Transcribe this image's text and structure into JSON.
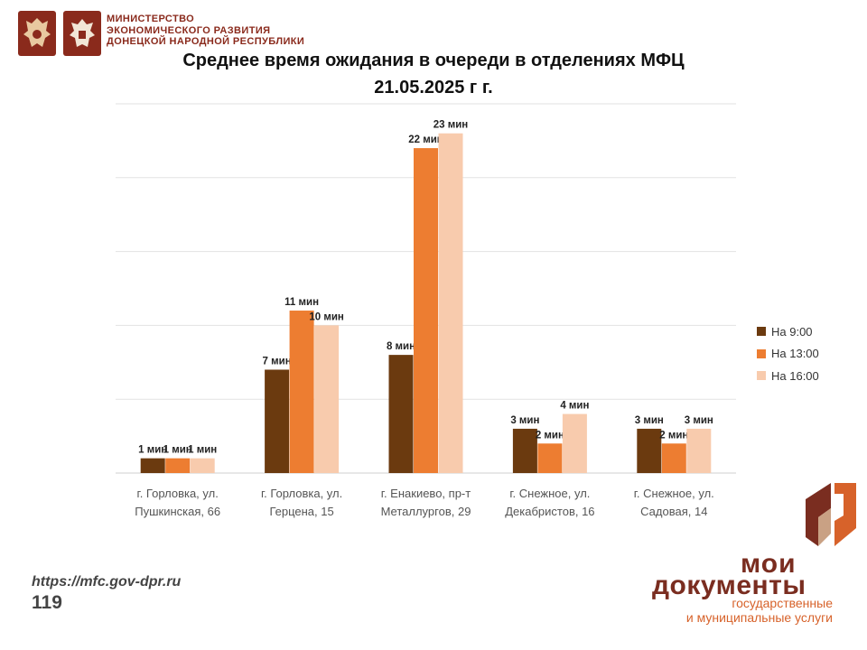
{
  "header": {
    "ministry_lines": [
      "МИНИСТЕРСТВО",
      "ЭКОНОМИЧЕСКОГО РАЗВИТИЯ",
      "ДОНЕЦКОЙ НАРОДНОЙ РЕСПУБЛИКИ"
    ]
  },
  "colors": {
    "series": [
      "#6b3a0f",
      "#ed7d31",
      "#f8cbad"
    ],
    "brand": "#7a2d20",
    "accent": "#d7622a"
  },
  "chart_data": {
    "type": "bar",
    "title_line_1": "Среднее время ожидания в очереди в отделениях МФЦ",
    "title_line_2": "21.05.2025 г г.",
    "categories": [
      [
        "г. Горловка, ул.",
        "Пушкинская, 66"
      ],
      [
        "г. Горловка, ул.",
        "Герцена, 15"
      ],
      [
        "г. Енакиево, пр-т",
        "Металлургов, 29"
      ],
      [
        "г. Снежное, ул.",
        "Декабристов, 16"
      ],
      [
        "г. Снежное, ул.",
        "Садовая, 14"
      ]
    ],
    "series": [
      {
        "name": "На 9:00",
        "values": [
          1,
          7,
          8,
          3,
          3
        ],
        "labels": [
          "1 мин",
          "7 мин",
          "8 мин",
          "3 мин",
          "3 мин"
        ]
      },
      {
        "name": "На 13:00",
        "values": [
          1,
          11,
          22,
          2,
          2
        ],
        "labels": [
          "1 мин",
          "11 мин",
          "22 мин",
          "2 мин",
          "2 мин"
        ]
      },
      {
        "name": "На 16:00",
        "values": [
          1,
          10,
          23,
          4,
          3
        ],
        "labels": [
          "1 мин",
          "10 мин",
          "23 мин",
          "4 мин",
          "3 мин"
        ]
      }
    ],
    "ylim": [
      0,
      25
    ],
    "grid": true,
    "legend": "right"
  },
  "footer": {
    "url": "https://mfc.gov-dpr.ru",
    "phone": "119",
    "brand_line_1": "мои",
    "brand_line_2": "документы",
    "brand_tagline_1": "государственные",
    "brand_tagline_2": "и муниципальные услуги"
  }
}
